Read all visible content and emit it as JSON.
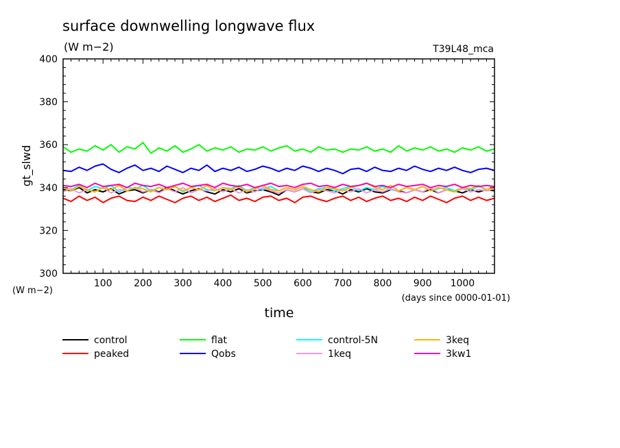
{
  "chart_data": {
    "type": "line",
    "title": "surface downwelling longwave flux",
    "units": "(W m−2)",
    "run_label": "T39L48_mca",
    "ylabel": "gt_slwd",
    "y_unit_label": "(W m−2)",
    "xlabel": "time",
    "x_unit_label": "(days since 0000-01-01)",
    "xlim": [
      0,
      1080
    ],
    "ylim": [
      300,
      400
    ],
    "x_ticks": [
      100,
      200,
      300,
      400,
      500,
      600,
      700,
      800,
      900,
      1000
    ],
    "y_ticks": [
      300,
      320,
      340,
      360,
      380,
      400
    ],
    "x": [
      0,
      20,
      40,
      60,
      80,
      100,
      120,
      140,
      160,
      180,
      200,
      220,
      240,
      260,
      280,
      300,
      320,
      340,
      360,
      380,
      400,
      420,
      440,
      460,
      480,
      500,
      520,
      540,
      560,
      580,
      600,
      620,
      640,
      660,
      680,
      700,
      720,
      740,
      760,
      780,
      800,
      820,
      840,
      860,
      880,
      900,
      920,
      940,
      960,
      980,
      1000,
      1020,
      1040,
      1060,
      1080
    ],
    "series": [
      {
        "name": "control",
        "color": "#000000",
        "values": [
          339,
          338.5,
          340,
          337.5,
          339,
          338,
          339.5,
          337,
          338.5,
          339,
          337.5,
          339,
          338,
          340,
          338.5,
          337,
          338.5,
          339.5,
          338,
          337,
          339,
          338,
          339.5,
          337.5,
          338.5,
          339,
          338,
          336.5,
          339,
          338,
          339.5,
          338,
          337.5,
          339,
          338.5,
          337,
          339,
          338,
          339.5,
          338,
          337.5,
          339,
          338.5,
          337.5,
          339,
          338,
          339,
          337.5,
          339,
          338.5,
          337.5,
          339,
          338,
          339,
          338.5
        ]
      },
      {
        "name": "peaked",
        "color": "#ff0000",
        "values": [
          335,
          333.5,
          336,
          334,
          335.5,
          333,
          335,
          336,
          334,
          333.5,
          335.5,
          334,
          336,
          334.5,
          333,
          335,
          336,
          334,
          335.5,
          333.5,
          335,
          336.5,
          334,
          335,
          333.5,
          335.5,
          336,
          334,
          335,
          333,
          335.5,
          336,
          334.5,
          333.5,
          335,
          336,
          334,
          335.5,
          333.5,
          335,
          336,
          334,
          335,
          333.5,
          335.5,
          334,
          336,
          334.5,
          333,
          335,
          336,
          334,
          335.5,
          334,
          335
        ]
      },
      {
        "name": "flat",
        "color": "#00ff00",
        "values": [
          359,
          356.5,
          358,
          357,
          359.5,
          357.5,
          360,
          356.5,
          359,
          358,
          361,
          356,
          358.5,
          357,
          359.5,
          356.5,
          358,
          360,
          357,
          358.5,
          357.5,
          359,
          356.5,
          358,
          357.5,
          359,
          357,
          358.5,
          359.5,
          357,
          358,
          356.5,
          359,
          357.5,
          358,
          356.5,
          358,
          357.5,
          359,
          357,
          358,
          356.5,
          359.5,
          357,
          358.5,
          357.5,
          359,
          357,
          358,
          356.5,
          358.5,
          357.5,
          359,
          357,
          358
        ]
      },
      {
        "name": "Qobs",
        "color": "#0000ff",
        "values": [
          348,
          347.5,
          349.5,
          348,
          350,
          351,
          348.5,
          347,
          349,
          350.5,
          348,
          349,
          347.5,
          350,
          348.5,
          347,
          349,
          348,
          350.5,
          347.5,
          349,
          348,
          349.5,
          347.5,
          348.5,
          350,
          349,
          347.5,
          349,
          348,
          350,
          349,
          347.5,
          349,
          348,
          346.5,
          348.5,
          349,
          347.5,
          349.5,
          348,
          347.5,
          349,
          348,
          350,
          348.5,
          347.5,
          349,
          348,
          349.5,
          348,
          347,
          348.5,
          349,
          348
        ]
      },
      {
        "name": "control-5N",
        "color": "#00ffff",
        "values": [
          340,
          339,
          341,
          338.5,
          340.5,
          339.5,
          341,
          338,
          340,
          339.5,
          341,
          338.5,
          340,
          339,
          340.5,
          338,
          340,
          341,
          339,
          338.5,
          340,
          339.5,
          341,
          338.5,
          340,
          339,
          340.5,
          338.5,
          340,
          339,
          340.5,
          338,
          339.5,
          340,
          338.5,
          339.5,
          340.5,
          338.5,
          340,
          339,
          340.5,
          339,
          338.5,
          340,
          339,
          340.5,
          338.5,
          339.5,
          340,
          338.5,
          340,
          339,
          340.5,
          339,
          340
        ]
      },
      {
        "name": "1keq",
        "color": "#ee99dd",
        "values": [
          338,
          339.5,
          337.5,
          339,
          338,
          340,
          337.5,
          339,
          338.5,
          340,
          338,
          339,
          337.5,
          339.5,
          338,
          340,
          337.5,
          339,
          338.5,
          339.5,
          338,
          339.5,
          337.5,
          339,
          338,
          340,
          338.5,
          337.5,
          339,
          338,
          339.5,
          337.5,
          339,
          338.5,
          337.5,
          339,
          338,
          339.5,
          337.5,
          339,
          338,
          339.5,
          338,
          337.5,
          339,
          338,
          340,
          337.5,
          339,
          338,
          339.5,
          338,
          339,
          338.5,
          339.5
        ]
      },
      {
        "name": "3keq",
        "color": "#ffb300",
        "values": [
          340,
          338.5,
          340.5,
          339,
          338,
          340,
          339,
          341,
          338.5,
          340,
          339.5,
          338,
          340,
          339,
          340.5,
          338.5,
          340,
          339,
          341,
          338.5,
          340,
          339,
          340.5,
          338,
          339.5,
          341,
          339,
          338.5,
          340,
          339,
          340.5,
          339,
          338,
          340,
          339.5,
          338.5,
          340,
          341,
          342,
          340,
          339,
          341,
          338.5,
          340,
          339,
          340.5,
          338.5,
          340,
          339,
          338,
          340,
          339.5,
          341,
          339,
          340
        ]
      },
      {
        "name": "3kw1",
        "color": "#ff00aa",
        "values": [
          341,
          340.5,
          341.5,
          340,
          342,
          340.5,
          341,
          341.5,
          340,
          342,
          341,
          340.5,
          341.5,
          340,
          341,
          342,
          340.5,
          341,
          341.5,
          340,
          342,
          341,
          340.5,
          341.5,
          340,
          341,
          342,
          340.5,
          341,
          340,
          341.5,
          342,
          340.5,
          341,
          340,
          341.5,
          340.5,
          341,
          342,
          340.5,
          341,
          340,
          341.5,
          340.5,
          341,
          341.5,
          340,
          341,
          340.5,
          341.5,
          340,
          341,
          340.5,
          341,
          340.5
        ]
      }
    ]
  }
}
